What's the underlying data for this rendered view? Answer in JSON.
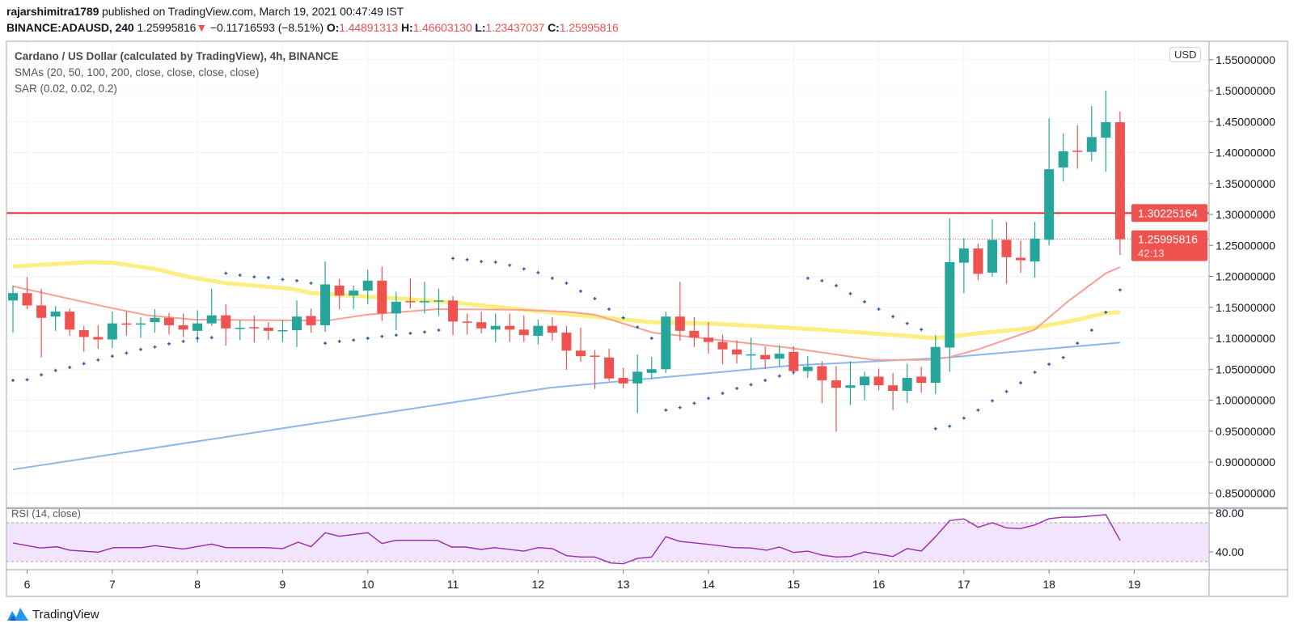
{
  "header": {
    "author": "rajarshimitra1789",
    "published": " published on TradingView.com, March 19, 2021 00:47:49 IST",
    "symbol": "BINANCE:ADAUSD, 240",
    "last": "1.25995816",
    "arrow": "▼",
    "change": "−0.11716593 (−8.51%)",
    "o_label": "O:",
    "o_value": "1.44891313",
    "h_label": "H:",
    "h_value": "1.46603130",
    "l_label": "L:",
    "l_value": "1.23437037",
    "c_label": "C:",
    "c_value": "1.25995816"
  },
  "legend": {
    "title": "Cardano / US Dollar (calculated by TradingView), 4h, BINANCE",
    "smas": "SMAs (20, 50, 100, 200, close, close, close, close)",
    "sar": "SAR (0.02, 0.02, 0.2)"
  },
  "price_axis": {
    "currency": "USD",
    "hline_label": "1.30225164",
    "last_price_label": "1.25995816",
    "countdown": "42:13"
  },
  "rsi": {
    "label": "RSI (14, close)"
  },
  "branding": {
    "name": "TradingView"
  },
  "colors": {
    "up": "#26a69a",
    "down": "#ef5350",
    "sma20": "#f5a196",
    "sma50": "#fbee82",
    "sma100": "#8ab8ec",
    "sar": "#2c5da8",
    "hline": "#e8312f",
    "rsi_line": "#9c27b0",
    "rsi_band": "#f3e4fd",
    "grid": "#f0f3fa",
    "brand": "#2196f3"
  },
  "chart_data": {
    "type": "candlestick",
    "title": "Cardano / US Dollar (calculated by TradingView), 4h, BINANCE",
    "ylim": [
      0.85,
      1.55
    ],
    "yticks": [
      "1.55000000",
      "1.50000000",
      "1.45000000",
      "1.40000000",
      "1.35000000",
      "1.30000000",
      "1.25000000",
      "1.20000000",
      "1.15000000",
      "1.10000000",
      "1.05000000",
      "1.00000000",
      "0.95000000",
      "0.90000000",
      "0.85000000"
    ],
    "xticks": [
      "6",
      "7",
      "8",
      "9",
      "10",
      "11",
      "12",
      "13",
      "14",
      "15",
      "16",
      "17",
      "18",
      "19"
    ],
    "candles_ohlc": [
      [
        1.161,
        1.185,
        1.109,
        1.173
      ],
      [
        1.173,
        1.199,
        1.147,
        1.153
      ],
      [
        1.153,
        1.18,
        1.069,
        1.133
      ],
      [
        1.135,
        1.152,
        1.112,
        1.143
      ],
      [
        1.143,
        1.148,
        1.104,
        1.114
      ],
      [
        1.113,
        1.12,
        1.078,
        1.102
      ],
      [
        1.102,
        1.121,
        1.083,
        1.098
      ],
      [
        1.098,
        1.143,
        1.084,
        1.124
      ],
      [
        1.124,
        1.143,
        1.104,
        1.122
      ],
      [
        1.122,
        1.134,
        1.101,
        1.124
      ],
      [
        1.126,
        1.147,
        1.109,
        1.133
      ],
      [
        1.133,
        1.141,
        1.106,
        1.121
      ],
      [
        1.121,
        1.14,
        1.102,
        1.114
      ],
      [
        1.112,
        1.145,
        1.093,
        1.124
      ],
      [
        1.124,
        1.18,
        1.12,
        1.137
      ],
      [
        1.137,
        1.155,
        1.088,
        1.116
      ],
      [
        1.116,
        1.129,
        1.097,
        1.117
      ],
      [
        1.118,
        1.137,
        1.093,
        1.117
      ],
      [
        1.117,
        1.126,
        1.097,
        1.112
      ],
      [
        1.112,
        1.129,
        1.094,
        1.113
      ],
      [
        1.113,
        1.161,
        1.086,
        1.135
      ],
      [
        1.136,
        1.148,
        1.109,
        1.121
      ],
      [
        1.121,
        1.224,
        1.11,
        1.187
      ],
      [
        1.185,
        1.196,
        1.147,
        1.169
      ],
      [
        1.169,
        1.185,
        1.147,
        1.177
      ],
      [
        1.177,
        1.211,
        1.155,
        1.193
      ],
      [
        1.193,
        1.216,
        1.128,
        1.14
      ],
      [
        1.14,
        1.175,
        1.113,
        1.159
      ],
      [
        1.16,
        1.197,
        1.148,
        1.159
      ],
      [
        1.159,
        1.191,
        1.14,
        1.16
      ],
      [
        1.16,
        1.18,
        1.136,
        1.161
      ],
      [
        1.161,
        1.168,
        1.105,
        1.127
      ],
      [
        1.127,
        1.14,
        1.106,
        1.126
      ],
      [
        1.126,
        1.143,
        1.108,
        1.116
      ],
      [
        1.114,
        1.14,
        1.094,
        1.12
      ],
      [
        1.12,
        1.14,
        1.094,
        1.114
      ],
      [
        1.114,
        1.137,
        1.094,
        1.105
      ],
      [
        1.104,
        1.13,
        1.09,
        1.12
      ],
      [
        1.12,
        1.134,
        1.096,
        1.109
      ],
      [
        1.109,
        1.12,
        1.049,
        1.08
      ],
      [
        1.08,
        1.117,
        1.062,
        1.071
      ],
      [
        1.072,
        1.081,
        1.018,
        1.071
      ],
      [
        1.069,
        1.083,
        1.031,
        1.035
      ],
      [
        1.036,
        1.052,
        1.019,
        1.027
      ],
      [
        1.027,
        1.074,
        0.979,
        1.046
      ],
      [
        1.044,
        1.07,
        1.034,
        1.05
      ],
      [
        1.05,
        1.143,
        1.044,
        1.135
      ],
      [
        1.135,
        1.191,
        1.096,
        1.112
      ],
      [
        1.112,
        1.134,
        1.086,
        1.101
      ],
      [
        1.101,
        1.126,
        1.075,
        1.094
      ],
      [
        1.094,
        1.106,
        1.058,
        1.082
      ],
      [
        1.082,
        1.097,
        1.059,
        1.074
      ],
      [
        1.073,
        1.101,
        1.05,
        1.074
      ],
      [
        1.073,
        1.087,
        1.05,
        1.066
      ],
      [
        1.067,
        1.089,
        1.054,
        1.075
      ],
      [
        1.078,
        1.087,
        1.041,
        1.047
      ],
      [
        1.047,
        1.071,
        1.036,
        1.054
      ],
      [
        1.055,
        1.063,
        0.995,
        1.032
      ],
      [
        1.032,
        1.055,
        0.949,
        1.02
      ],
      [
        1.02,
        1.063,
        0.992,
        1.024
      ],
      [
        1.024,
        1.046,
        1.0,
        1.038
      ],
      [
        1.038,
        1.051,
        1.016,
        1.024
      ],
      [
        1.024,
        1.044,
        0.984,
        1.015
      ],
      [
        1.015,
        1.059,
        0.996,
        1.036
      ],
      [
        1.038,
        1.054,
        1.012,
        1.028
      ],
      [
        1.028,
        1.105,
        1.01,
        1.086
      ],
      [
        1.085,
        1.294,
        1.046,
        1.223
      ],
      [
        1.222,
        1.262,
        1.173,
        1.245
      ],
      [
        1.245,
        1.253,
        1.194,
        1.204
      ],
      [
        1.206,
        1.292,
        1.199,
        1.259
      ],
      [
        1.259,
        1.288,
        1.188,
        1.231
      ],
      [
        1.23,
        1.258,
        1.206,
        1.226
      ],
      [
        1.224,
        1.288,
        1.198,
        1.261
      ],
      [
        1.259,
        1.455,
        1.25,
        1.373
      ],
      [
        1.376,
        1.431,
        1.353,
        1.402
      ],
      [
        1.403,
        1.444,
        1.374,
        1.401
      ],
      [
        1.401,
        1.475,
        1.386,
        1.425
      ],
      [
        1.424,
        1.5,
        1.369,
        1.449
      ],
      [
        1.44891313,
        1.4660313,
        1.23437037,
        1.25995816
      ]
    ],
    "sma20": [
      [
        0,
        1.184
      ],
      [
        6.7,
        1.15
      ],
      [
        9.5,
        1.137
      ],
      [
        12.8,
        1.13
      ],
      [
        19.6,
        1.129
      ],
      [
        22.3,
        1.129
      ],
      [
        24.9,
        1.138
      ],
      [
        29.9,
        1.147
      ],
      [
        35.6,
        1.146
      ],
      [
        39,
        1.143
      ],
      [
        41,
        1.138
      ],
      [
        45.1,
        1.109
      ],
      [
        54.9,
        1.084
      ],
      [
        60.6,
        1.065
      ],
      [
        64.4,
        1.065
      ],
      [
        65.9,
        1.069
      ],
      [
        68,
        1.082
      ],
      [
        72,
        1.114
      ],
      [
        74.3,
        1.159
      ],
      [
        77,
        1.205
      ],
      [
        78,
        1.215
      ]
    ],
    "sma50": [
      [
        0,
        1.216
      ],
      [
        5.4,
        1.223
      ],
      [
        7,
        1.222
      ],
      [
        10,
        1.212
      ],
      [
        12.4,
        1.199
      ],
      [
        15,
        1.189
      ],
      [
        19.6,
        1.18
      ],
      [
        21,
        1.173
      ],
      [
        28,
        1.163
      ],
      [
        31,
        1.158
      ],
      [
        35.6,
        1.147
      ],
      [
        39,
        1.139
      ],
      [
        45,
        1.126
      ],
      [
        49,
        1.124
      ],
      [
        56.8,
        1.114
      ],
      [
        62.9,
        1.104
      ],
      [
        65,
        1.1
      ],
      [
        68,
        1.108
      ],
      [
        72,
        1.117
      ],
      [
        75,
        1.13
      ],
      [
        77,
        1.141
      ],
      [
        78,
        1.142
      ]
    ],
    "sma100": [
      [
        0,
        0.888
      ],
      [
        19.7,
        0.957
      ],
      [
        37.8,
        1.02
      ],
      [
        54.9,
        1.056
      ],
      [
        64.4,
        1.067
      ],
      [
        65.9,
        1.069
      ],
      [
        78,
        1.093
      ]
    ],
    "sar": [
      1.032,
      1.033,
      1.041,
      1.048,
      1.053,
      1.059,
      1.065,
      1.071,
      1.076,
      1.082,
      1.086,
      1.091,
      1.095,
      1.1,
      1.101,
      1.205,
      1.202,
      1.199,
      1.198,
      1.195,
      1.193,
      1.189,
      1.092,
      1.095,
      1.097,
      1.1,
      1.103,
      1.105,
      1.108,
      1.11,
      1.113,
      1.229,
      1.227,
      1.224,
      1.223,
      1.218,
      1.212,
      1.206,
      1.197,
      1.189,
      1.176,
      1.164,
      1.147,
      1.133,
      1.118,
      1.1,
      0.984,
      0.988,
      0.995,
      1.003,
      1.011,
      1.019,
      1.025,
      1.032,
      1.039,
      1.045,
      1.197,
      1.193,
      1.185,
      1.172,
      1.159,
      1.147,
      1.135,
      1.124,
      1.114,
      0.954,
      0.958,
      0.971,
      0.984,
      0.999,
      1.014,
      1.028,
      1.045,
      1.058,
      1.069,
      1.092,
      1.113,
      1.142,
      1.178
    ],
    "hline": 1.30225164,
    "last_price": 1.25995816,
    "rsi_levels": [
      "80.00",
      "40.00"
    ],
    "rsi_band": [
      30,
      70
    ],
    "rsi": [
      [
        0,
        49.2
      ],
      [
        1.9,
        44
      ],
      [
        3.1,
        45.3
      ],
      [
        4,
        41.7
      ],
      [
        6,
        39.7
      ],
      [
        7.1,
        44.4
      ],
      [
        9.1,
        44.4
      ],
      [
        10,
        46.4
      ],
      [
        12,
        43
      ],
      [
        14,
        48
      ],
      [
        15,
        44.4
      ],
      [
        17.8,
        44.4
      ],
      [
        19,
        43.4
      ],
      [
        20.1,
        50
      ],
      [
        21,
        45.3
      ],
      [
        22,
        59.7
      ],
      [
        23,
        56.1
      ],
      [
        25,
        59.7
      ],
      [
        26,
        48.6
      ],
      [
        27,
        51.9
      ],
      [
        29.9,
        51.9
      ],
      [
        30.9,
        45
      ],
      [
        31.9,
        45
      ],
      [
        33,
        42.5
      ],
      [
        33.9,
        44.4
      ],
      [
        36,
        40.8
      ],
      [
        37,
        44.4
      ],
      [
        38,
        43.4
      ],
      [
        39,
        36.1
      ],
      [
        40,
        34.7
      ],
      [
        41,
        34.7
      ],
      [
        42.1,
        28.6
      ],
      [
        43,
        27.8
      ],
      [
        44,
        33.3
      ],
      [
        45,
        34.7
      ],
      [
        46,
        55.6
      ],
      [
        47,
        50.8
      ],
      [
        49,
        47.8
      ],
      [
        50.8,
        44.4
      ],
      [
        52,
        44
      ],
      [
        53.1,
        41.7
      ],
      [
        54,
        45
      ],
      [
        55,
        39.4
      ],
      [
        56,
        40.8
      ],
      [
        57,
        36.7
      ],
      [
        58,
        34.7
      ],
      [
        59,
        35.3
      ],
      [
        60,
        40
      ],
      [
        62,
        35.3
      ],
      [
        63,
        43.4
      ],
      [
        64,
        40.8
      ],
      [
        65,
        55.6
      ],
      [
        66,
        72.2
      ],
      [
        67,
        74
      ],
      [
        68,
        65.3
      ],
      [
        69,
        70
      ],
      [
        70,
        64.7
      ],
      [
        71,
        64
      ],
      [
        72,
        67.8
      ],
      [
        73,
        74.2
      ],
      [
        74,
        75.8
      ],
      [
        75,
        75.8
      ],
      [
        77,
        78.3
      ],
      [
        78,
        51.9
      ]
    ]
  }
}
